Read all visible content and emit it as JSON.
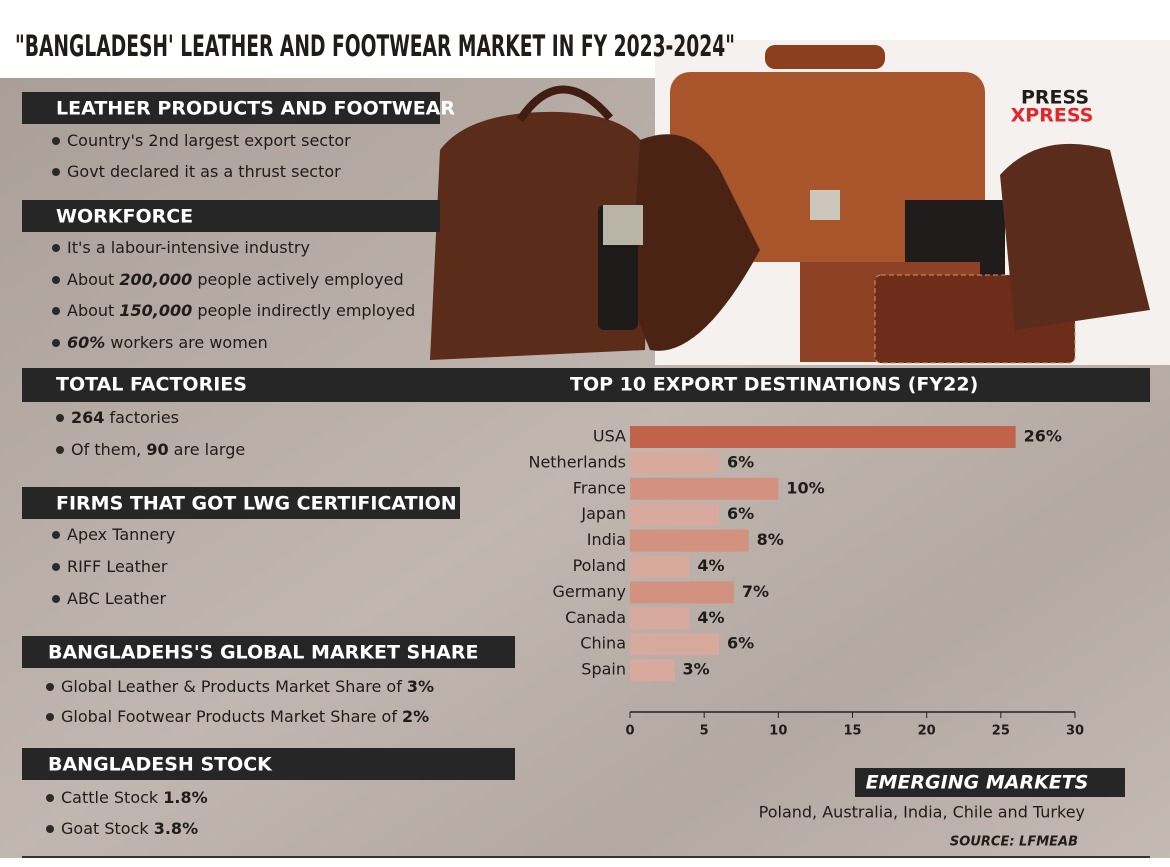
{
  "title": "\"BANGLADESH' LEATHER AND FOOTWEAR MARKET IN FY 2023-2024\"",
  "logo": {
    "top": "PRESS",
    "bottom": "XPRESS"
  },
  "sections": [
    {
      "heading": "LEATHER PRODUCTS AND FOOTWEAR",
      "bullets": [
        [
          {
            "text": "Country's 2nd largest export sector"
          }
        ],
        [
          {
            "text": "Govt declared it as a thrust sector"
          }
        ]
      ]
    },
    {
      "heading": "WORKFORCE",
      "bullets": [
        [
          {
            "text": "It's a labour-intensive industry"
          }
        ],
        [
          {
            "text": "About "
          },
          {
            "text": "200,000",
            "style": "bold-italic"
          },
          {
            "text": " people actively employed"
          }
        ],
        [
          {
            "text": "About "
          },
          {
            "text": "150,000",
            "style": "bold-italic"
          },
          {
            "text": " people indirectly employed"
          }
        ],
        [
          {
            "text": "60%",
            "style": "bold-italic"
          },
          {
            "text": " workers are women"
          }
        ]
      ]
    },
    {
      "heading": "TOTAL FACTORIES",
      "bullets": [
        [
          {
            "text": "264",
            "style": "bold"
          },
          {
            "text": " factories"
          }
        ],
        [
          {
            "text": "Of them, "
          },
          {
            "text": "90",
            "style": "bold"
          },
          {
            "text": " are large"
          }
        ]
      ]
    },
    {
      "heading": "FIRMS THAT GOT LWG CERTIFICATION",
      "bullets": [
        [
          {
            "text": "Apex Tannery"
          }
        ],
        [
          {
            "text": "RIFF Leather"
          }
        ],
        [
          {
            "text": "ABC Leather"
          }
        ]
      ]
    },
    {
      "heading": "BANGLADEHS'S GLOBAL MARKET SHARE",
      "bullets": [
        [
          {
            "text": "Global Leather & Products Market Share of "
          },
          {
            "text": "3%",
            "style": "bold"
          }
        ],
        [
          {
            "text": "Global Footwear Products Market Share of "
          },
          {
            "text": "2%",
            "style": "bold"
          }
        ]
      ]
    },
    {
      "heading": "BANGLADESH STOCK",
      "bullets": [
        [
          {
            "text": "Cattle Stock "
          },
          {
            "text": "1.8%",
            "style": "bold"
          }
        ],
        [
          {
            "text": "Goat Stock "
          },
          {
            "text": "3.8%",
            "style": "bold"
          }
        ]
      ]
    }
  ],
  "chart_data": {
    "type": "bar",
    "orientation": "horizontal",
    "title": "TOP 10 EXPORT DESTINATIONS (FY22)",
    "categories": [
      "USA",
      "Netherlands",
      "France",
      "Japan",
      "India",
      "Poland",
      "Germany",
      "Canada",
      "China",
      "Spain"
    ],
    "values": [
      26,
      6,
      10,
      6,
      8,
      4,
      7,
      4,
      6,
      3
    ],
    "value_labels": [
      "26%",
      "6%",
      "10%",
      "6%",
      "8%",
      "4%",
      "7%",
      "4%",
      "6%",
      "3%"
    ],
    "colors": [
      "#c0634a",
      "#d8aa9d",
      "#d3917f",
      "#d8aa9d",
      "#d3917f",
      "#d8aa9d",
      "#d3917f",
      "#d8aa9d",
      "#d8aa9d",
      "#d8aa9d"
    ],
    "xlim": [
      0,
      30
    ],
    "xticks": [
      0,
      5,
      10,
      15,
      20,
      25,
      30
    ]
  },
  "emerging_markets": {
    "heading": "EMERGING MARKETS",
    "text": "Poland, Australia, India, Chile and Turkey"
  },
  "source": "SOURCE: LFMEAB"
}
